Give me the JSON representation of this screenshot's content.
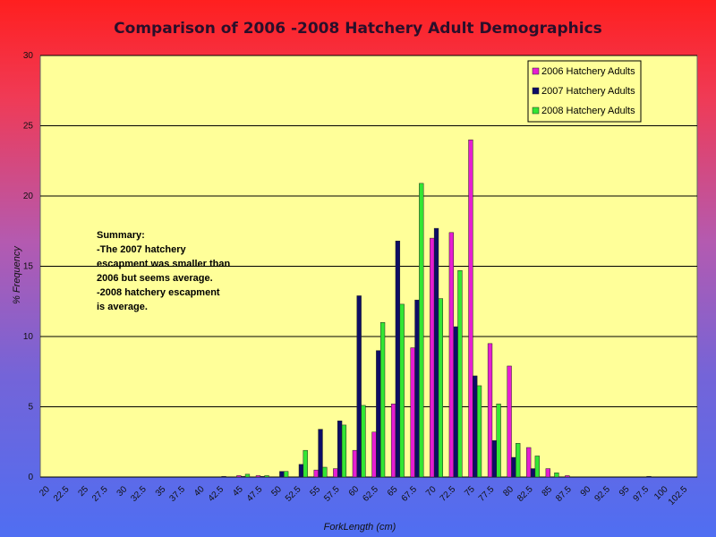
{
  "chart_data": {
    "type": "bar",
    "title": "Comparison of 2006 -2008 Hatchery Adult Demographics",
    "xlabel": "ForkLength (cm)",
    "ylabel": "% Frequency",
    "ylim": [
      0,
      30
    ],
    "yticks": [
      "0",
      "5",
      "10",
      "15",
      "20",
      "25",
      "30"
    ],
    "grid": true,
    "legend_position": "top-right",
    "categories": [
      "20",
      "22.5",
      "25",
      "27.5",
      "30",
      "32.5",
      "35",
      "37.5",
      "40",
      "42.5",
      "45",
      "47.5",
      "50",
      "52.5",
      "55",
      "57.5",
      "60",
      "62.5",
      "65",
      "67.5",
      "70",
      "72.5",
      "75",
      "77.5",
      "80",
      "82.5",
      "85",
      "87.5",
      "90",
      "92.5",
      "95",
      "97.5",
      "100",
      "102.5"
    ],
    "series": [
      {
        "name": "2006 Hatchery Adults",
        "color": "#e61ed2",
        "values": [
          0,
          0,
          0,
          0,
          0,
          0,
          0,
          0,
          0,
          0,
          0.1,
          0.1,
          0,
          0,
          0.5,
          0.6,
          1.9,
          3.2,
          5.2,
          9.2,
          17,
          17.4,
          24,
          9.5,
          7.9,
          2.1,
          0.6,
          0.1,
          0,
          0,
          0,
          0,
          0,
          0
        ]
      },
      {
        "name": "2007 Hatchery Adults",
        "color": "#0d0d66",
        "values": [
          0,
          0,
          0,
          0,
          0,
          0,
          0,
          0,
          0,
          0.05,
          0.05,
          0.05,
          0.4,
          0.9,
          3.4,
          4.0,
          12.9,
          9.0,
          16.8,
          12.6,
          17.7,
          10.7,
          7.2,
          2.6,
          1.4,
          0.6,
          0,
          0,
          0,
          0,
          0,
          0.05,
          0,
          0
        ]
      },
      {
        "name": "2008 Hatchery Adults",
        "color": "#33e633",
        "values": [
          0,
          0,
          0,
          0,
          0,
          0,
          0,
          0,
          0,
          0,
          0.2,
          0.1,
          0.4,
          1.9,
          0.7,
          3.7,
          5.1,
          11.0,
          12.3,
          20.9,
          12.7,
          14.7,
          6.5,
          5.2,
          2.4,
          1.5,
          0.3,
          0,
          0,
          0,
          0,
          0,
          0,
          0
        ]
      }
    ],
    "annotation": {
      "lines": [
        "Summary:",
        "-The 2007 hatchery",
        "escapment was smaller than",
        "2006 but seems average.",
        "-2008 hatchery escapment",
        "is average."
      ]
    }
  },
  "colors": {
    "plot_background": "#ffff99",
    "gridline": "#000000"
  }
}
